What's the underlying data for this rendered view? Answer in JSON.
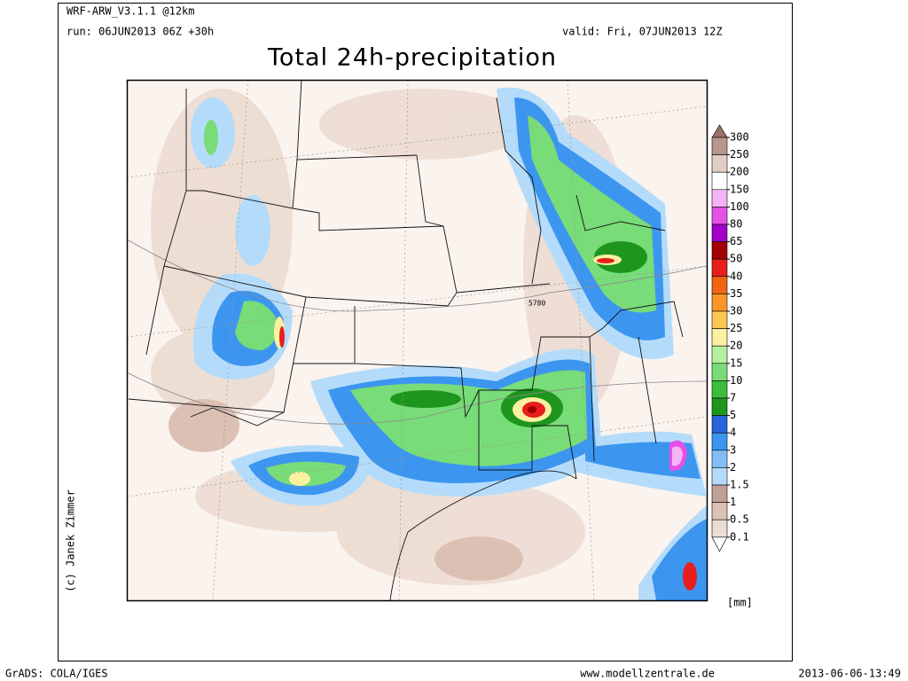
{
  "header": {
    "model": "WRF-ARW_V3.1.1 @12km",
    "run": "run: 06JUN2013 06Z +30h",
    "valid": "valid: Fri, 07JUN2013 12Z",
    "title": "Total 24h-precipitation"
  },
  "map": {
    "contour_label": "5780",
    "copyright": "(c) Janek Zimmer"
  },
  "legend": {
    "unit": "[mm]",
    "ticks": [
      300,
      250,
      200,
      150,
      100,
      80,
      65,
      50,
      40,
      35,
      30,
      25,
      20,
      15,
      10,
      7,
      5,
      4,
      3,
      2,
      1.5,
      1,
      0.5,
      0.1
    ],
    "colors": [
      "#9a7068",
      "#b8968c",
      "#e0cdc4",
      "#ffffff",
      "#f5b4f5",
      "#e650e6",
      "#a000c8",
      "#a00000",
      "#e61e1e",
      "#f06414",
      "#fa9628",
      "#fac850",
      "#faf0a0",
      "#b4f0a0",
      "#78dc78",
      "#3cbe3c",
      "#1e961e",
      "#2864dc",
      "#3c96f0",
      "#82bef5",
      "#b4dcfa",
      "#c0a096",
      "#dcc0b4",
      "#ecdcd2",
      "#faf0ea",
      "#ffffff"
    ]
  },
  "footer": {
    "left": "GrADS: COLA/IGES",
    "center": "www.modellzentrale.de",
    "right": "2013-06-06-13:49"
  }
}
